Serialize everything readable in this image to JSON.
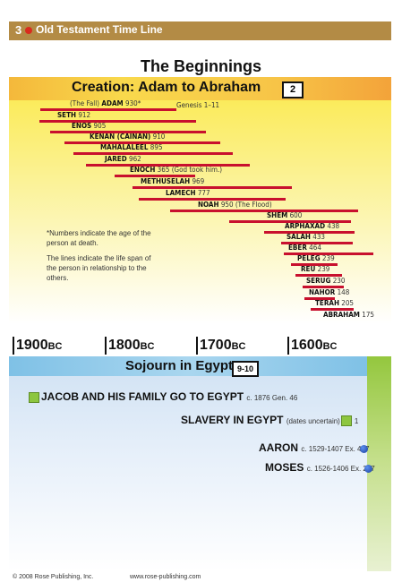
{
  "header": {
    "page_number": "3",
    "title": "Old Testament Time Line"
  },
  "main_title": "The Beginnings",
  "creation": {
    "title": "Creation: Adam to Abraham",
    "badge": "2",
    "reference": "Genesis 1–11",
    "patriarchs": [
      {
        "prefix": "(The Fall)",
        "name": "ADAM",
        "age": "930*",
        "suffix": ""
      },
      {
        "prefix": "",
        "name": "SETH",
        "age": "912",
        "suffix": ""
      },
      {
        "prefix": "",
        "name": "ENOS",
        "age": "905",
        "suffix": ""
      },
      {
        "prefix": "",
        "name": "KENAN (CAINAN)",
        "age": "910",
        "suffix": ""
      },
      {
        "prefix": "",
        "name": "MAHALALEEL",
        "age": "895",
        "suffix": ""
      },
      {
        "prefix": "",
        "name": "JARED",
        "age": "962",
        "suffix": ""
      },
      {
        "prefix": "",
        "name": "ENOCH",
        "age": "365",
        "suffix": "(God took him.)"
      },
      {
        "prefix": "",
        "name": "METHUSELAH",
        "age": "969",
        "suffix": ""
      },
      {
        "prefix": "",
        "name": "LAMECH",
        "age": "777",
        "suffix": ""
      },
      {
        "prefix": "",
        "name": "NOAH",
        "age": "950",
        "suffix": "(The Flood)"
      },
      {
        "prefix": "",
        "name": "SHEM",
        "age": "600",
        "suffix": ""
      },
      {
        "prefix": "",
        "name": "ARPHAXAD",
        "age": "438",
        "suffix": ""
      },
      {
        "prefix": "",
        "name": "SALAH",
        "age": "433",
        "suffix": ""
      },
      {
        "prefix": "",
        "name": "EBER",
        "age": "464",
        "suffix": ""
      },
      {
        "prefix": "",
        "name": "PELEG",
        "age": "239",
        "suffix": ""
      },
      {
        "prefix": "",
        "name": "REU",
        "age": "239",
        "suffix": ""
      },
      {
        "prefix": "",
        "name": "SERUG",
        "age": "230",
        "suffix": ""
      },
      {
        "prefix": "",
        "name": "NAHOR",
        "age": "148",
        "suffix": ""
      },
      {
        "prefix": "",
        "name": "TERAH",
        "age": "205",
        "suffix": ""
      },
      {
        "prefix": "",
        "name": "ABRAHAM",
        "age": "175",
        "suffix": ""
      }
    ],
    "note1": "*Numbers indicate the age of the person at death.",
    "note2": "The lines indicate the life span of the person in relationship to the others."
  },
  "timeline": {
    "years": [
      {
        "num": "1900",
        "era": "BC"
      },
      {
        "num": "1800",
        "era": "BC"
      },
      {
        "num": "1700",
        "era": "BC"
      },
      {
        "num": "1600",
        "era": "BC"
      }
    ]
  },
  "sojourn": {
    "title": "Sojourn in Egypt",
    "badge": "9-10",
    "events": [
      {
        "label": "JACOB AND HIS FAMILY GO TO EGYPT",
        "detail": "c. 1876 Gen. 46"
      },
      {
        "label": "SLAVERY IN EGYPT",
        "detail": "(dates uncertain) Ex. 1"
      },
      {
        "label": "AARON",
        "detail": "c. 1529-1407 Ex. 4–7"
      },
      {
        "label": "MOSES",
        "detail": "c. 1526-1406 Ex. 2–7"
      }
    ]
  },
  "footer": {
    "copyright": "© 2008 Rose Publishing, Inc.",
    "website": "www.rose-publishing.com"
  }
}
